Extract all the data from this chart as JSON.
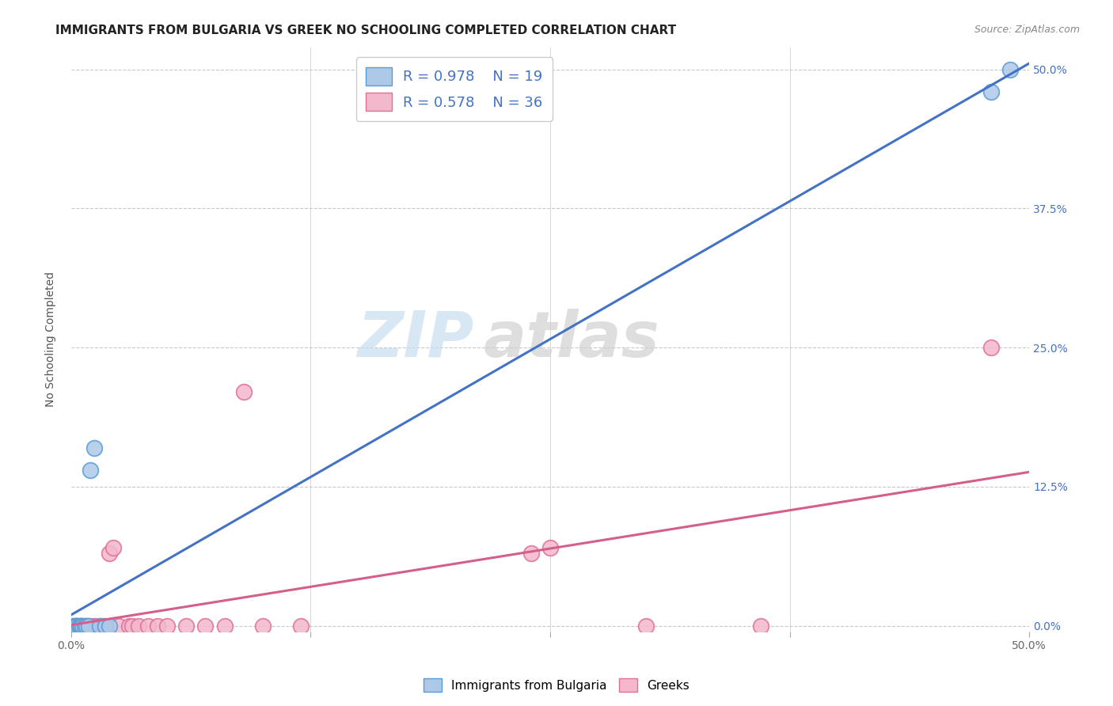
{
  "title": "IMMIGRANTS FROM BULGARIA VS GREEK NO SCHOOLING COMPLETED CORRELATION CHART",
  "source": "Source: ZipAtlas.com",
  "ylabel": "No Schooling Completed",
  "xlim": [
    0.0,
    0.5
  ],
  "ylim": [
    -0.005,
    0.52
  ],
  "xticks": [
    0.0,
    0.125,
    0.25,
    0.375,
    0.5
  ],
  "xtick_labels": [
    "0.0%",
    "",
    "",
    "",
    "50.0%"
  ],
  "ytick_labels_right": [
    "0.0%",
    "12.5%",
    "25.0%",
    "37.5%",
    "50.0%"
  ],
  "ytick_positions": [
    0.0,
    0.125,
    0.25,
    0.375,
    0.5
  ],
  "bg_color": "#ffffff",
  "watermark_zip": "ZIP",
  "watermark_atlas": "atlas",
  "legend_R1": "R = 0.978",
  "legend_N1": "N = 19",
  "legend_R2": "R = 0.578",
  "legend_N2": "N = 36",
  "color_bulgaria": "#aec9e8",
  "color_greeks": "#f4b8cc",
  "edge_color_bulgaria": "#5b9bd5",
  "edge_color_greeks": "#e07099",
  "line_color_bulgaria": "#4472c4",
  "line_color_greeks": "#d45f8a",
  "bulgaria_x": [
    0.001,
    0.002,
    0.003,
    0.003,
    0.004,
    0.005,
    0.005,
    0.005,
    0.006,
    0.007,
    0.008,
    0.009,
    0.01,
    0.012,
    0.015,
    0.018,
    0.02,
    0.48,
    0.49
  ],
  "bulgaria_y": [
    0.0,
    0.0,
    0.0,
    0.0,
    0.0,
    0.0,
    0.0,
    0.0,
    0.0,
    0.0,
    0.0,
    0.0,
    0.14,
    0.16,
    0.0,
    0.0,
    0.0,
    0.48,
    0.5
  ],
  "greeks_x": [
    0.001,
    0.002,
    0.002,
    0.003,
    0.003,
    0.004,
    0.005,
    0.006,
    0.007,
    0.008,
    0.009,
    0.01,
    0.012,
    0.013,
    0.015,
    0.017,
    0.02,
    0.022,
    0.025,
    0.03,
    0.032,
    0.035,
    0.04,
    0.045,
    0.05,
    0.06,
    0.07,
    0.08,
    0.09,
    0.1,
    0.12,
    0.24,
    0.25,
    0.3,
    0.36,
    0.48
  ],
  "greeks_y": [
    0.0,
    0.0,
    0.0,
    0.0,
    0.0,
    0.0,
    0.0,
    0.0,
    0.0,
    0.0,
    0.0,
    0.0,
    0.0,
    0.0,
    0.0,
    0.0,
    0.065,
    0.07,
    0.0,
    0.0,
    0.0,
    0.0,
    0.0,
    0.0,
    0.0,
    0.0,
    0.0,
    0.0,
    0.21,
    0.0,
    0.0,
    0.065,
    0.07,
    0.0,
    0.0,
    0.25
  ],
  "grid_color": "#c8c8c8",
  "title_fontsize": 11,
  "axis_label_fontsize": 10,
  "tick_fontsize": 10,
  "legend_fontsize": 13
}
